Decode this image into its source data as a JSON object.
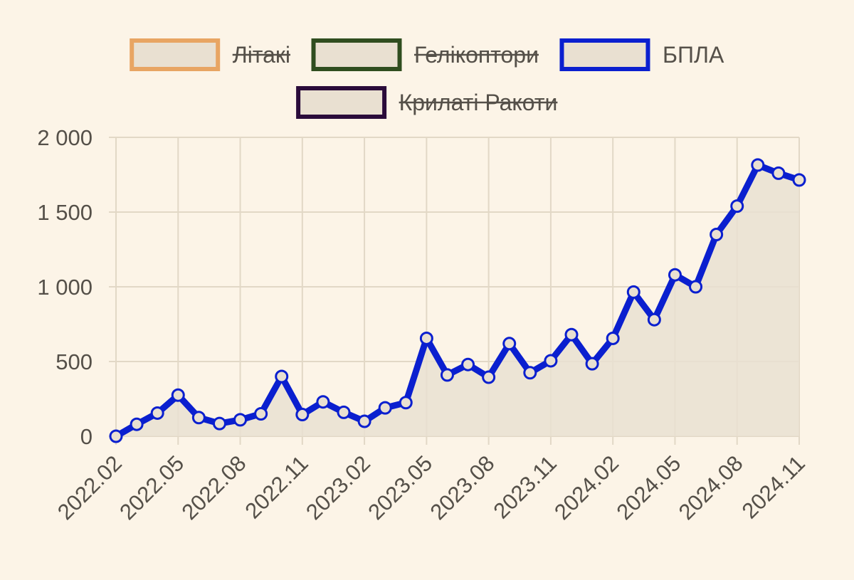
{
  "chart_data": {
    "type": "line",
    "colors": {
      "background": "#fcf4e7",
      "area_fill": "#e9e0d1",
      "grid": "#e2d8c6",
      "text": "#555049"
    },
    "legend": {
      "placement": "top-center",
      "entries": [
        {
          "label": "Літакі",
          "color": "#e8a563",
          "hidden": true
        },
        {
          "label": "Гелікоптори",
          "color": "#2f4d1f",
          "hidden": true
        },
        {
          "label": "БПЛА",
          "color": "#0a1fcf",
          "hidden": false
        },
        {
          "label": "Крилаті Ракоти",
          "color": "#2a0b3a",
          "hidden": true
        }
      ]
    },
    "x": [
      "2022.02",
      "2022.03",
      "2022.04",
      "2022.05",
      "2022.06",
      "2022.07",
      "2022.08",
      "2022.09",
      "2022.10",
      "2022.11",
      "2022.12",
      "2023.01",
      "2023.02",
      "2023.03",
      "2023.04",
      "2023.05",
      "2023.06",
      "2023.07",
      "2023.08",
      "2023.09",
      "2023.10",
      "2023.11",
      "2023.12",
      "2024.01",
      "2024.02",
      "2024.03",
      "2024.04",
      "2024.05",
      "2024.06",
      "2024.07",
      "2024.08",
      "2024.09",
      "2024.10",
      "2024.11"
    ],
    "x_tick_labels": [
      "2022.02",
      "2022.05",
      "2022.08",
      "2022.11",
      "2023.02",
      "2023.05",
      "2023.08",
      "2023.11",
      "2024.02",
      "2024.05",
      "2024.08",
      "2024.11"
    ],
    "series": [
      {
        "name": "БПЛА",
        "color": "#0a1fcf",
        "values": [
          0,
          80,
          155,
          275,
          125,
          85,
          110,
          150,
          400,
          145,
          230,
          160,
          100,
          190,
          225,
          655,
          410,
          480,
          395,
          620,
          425,
          505,
          680,
          485,
          655,
          965,
          780,
          1080,
          1000,
          1350,
          1540,
          1815,
          1760,
          1715
        ]
      }
    ],
    "y_ticks": [
      "0",
      "500",
      "1 000",
      "1 500",
      "2 000"
    ],
    "y_tick_values": [
      0,
      500,
      1000,
      1500,
      2000
    ],
    "ylim": [
      0,
      2000
    ],
    "grid": true
  }
}
